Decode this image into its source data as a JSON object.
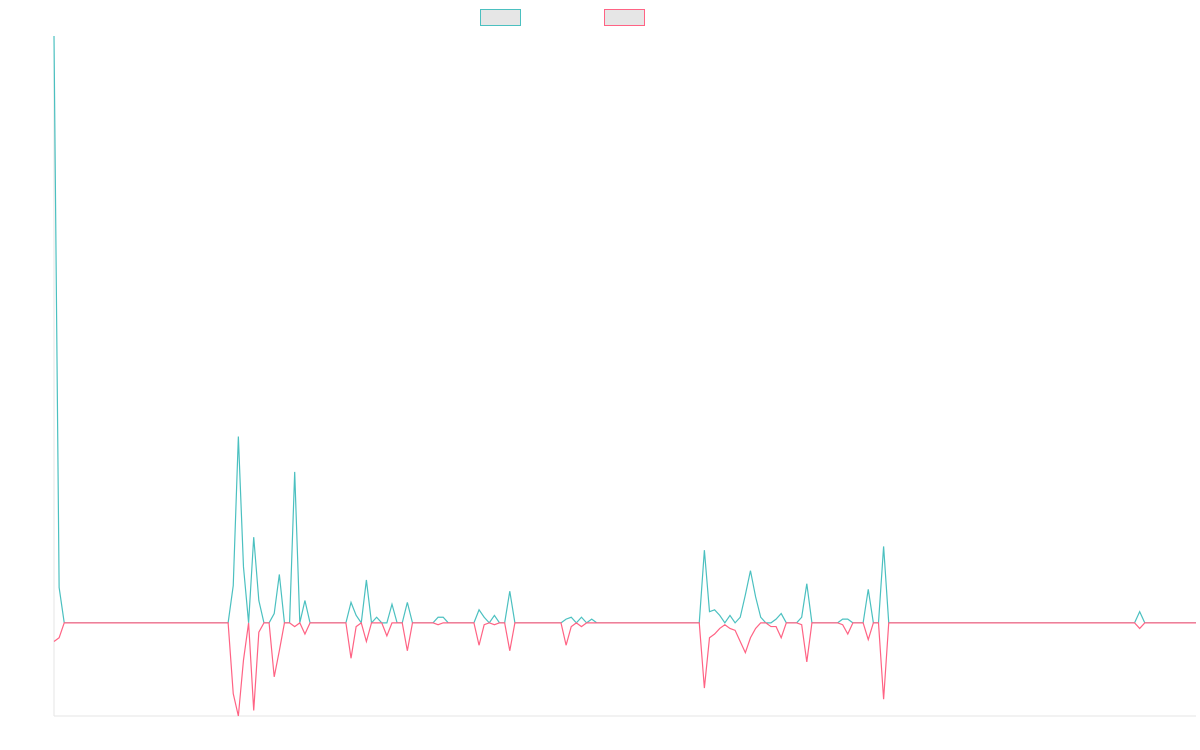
{
  "colors": {
    "series_a": "#4bc0c0",
    "series_b": "#ff6384",
    "legend_fill": "#e6e6e6",
    "axis": "#e5e5e5",
    "background": "#ffffff"
  },
  "legend": {
    "placement": "top-center",
    "items": [
      "",
      ""
    ]
  },
  "chart_data": {
    "type": "line",
    "title": "",
    "xlabel": "",
    "ylabel": "",
    "grid": false,
    "x_count": 224,
    "ylim": [
      -50,
      315
    ],
    "series": [
      {
        "name": "",
        "color": "#4bc0c0",
        "points": [
          [
            0,
            315
          ],
          [
            1,
            19
          ],
          [
            2,
            0
          ],
          [
            34,
            0
          ],
          [
            35,
            20
          ],
          [
            36,
            100
          ],
          [
            37,
            30
          ],
          [
            38,
            0
          ],
          [
            39,
            46
          ],
          [
            40,
            12
          ],
          [
            41,
            0
          ],
          [
            42,
            0
          ],
          [
            43,
            5
          ],
          [
            44,
            26
          ],
          [
            45,
            0
          ],
          [
            46,
            0
          ],
          [
            47,
            81
          ],
          [
            48,
            0
          ],
          [
            49,
            12
          ],
          [
            50,
            0
          ],
          [
            57,
            0
          ],
          [
            58,
            11
          ],
          [
            59,
            4
          ],
          [
            60,
            0
          ],
          [
            61,
            23
          ],
          [
            62,
            0
          ],
          [
            63,
            3
          ],
          [
            64,
            0
          ],
          [
            65,
            0
          ],
          [
            66,
            10
          ],
          [
            67,
            0
          ],
          [
            68,
            0
          ],
          [
            69,
            11
          ],
          [
            70,
            0
          ],
          [
            74,
            0
          ],
          [
            75,
            3
          ],
          [
            76,
            3
          ],
          [
            77,
            0
          ],
          [
            82,
            0
          ],
          [
            83,
            7
          ],
          [
            84,
            3
          ],
          [
            85,
            0
          ],
          [
            86,
            4
          ],
          [
            87,
            0
          ],
          [
            88,
            0
          ],
          [
            89,
            17
          ],
          [
            90,
            0
          ],
          [
            99,
            0
          ],
          [
            100,
            2
          ],
          [
            101,
            3
          ],
          [
            102,
            0
          ],
          [
            103,
            3
          ],
          [
            104,
            0
          ],
          [
            105,
            2
          ],
          [
            106,
            0
          ],
          [
            126,
            0
          ],
          [
            127,
            39
          ],
          [
            128,
            6
          ],
          [
            129,
            7
          ],
          [
            130,
            4
          ],
          [
            131,
            0
          ],
          [
            132,
            4
          ],
          [
            133,
            0
          ],
          [
            134,
            3
          ],
          [
            135,
            15
          ],
          [
            136,
            28
          ],
          [
            137,
            14
          ],
          [
            138,
            3
          ],
          [
            139,
            0
          ],
          [
            140,
            0
          ],
          [
            141,
            2
          ],
          [
            142,
            5
          ],
          [
            143,
            0
          ],
          [
            145,
            0
          ],
          [
            146,
            3
          ],
          [
            147,
            21
          ],
          [
            148,
            0
          ],
          [
            153,
            0
          ],
          [
            154,
            2
          ],
          [
            155,
            2
          ],
          [
            156,
            0
          ],
          [
            158,
            0
          ],
          [
            159,
            18
          ],
          [
            160,
            0
          ],
          [
            161,
            0
          ],
          [
            162,
            41
          ],
          [
            163,
            0
          ],
          [
            211,
            0
          ],
          [
            212,
            6
          ],
          [
            213,
            0
          ],
          [
            223,
            0
          ]
        ]
      },
      {
        "name": "",
        "color": "#ff6384",
        "points": [
          [
            0,
            -10
          ],
          [
            1,
            -8
          ],
          [
            2,
            0
          ],
          [
            34,
            0
          ],
          [
            35,
            -38
          ],
          [
            36,
            -50
          ],
          [
            37,
            -20
          ],
          [
            38,
            0
          ],
          [
            39,
            -47
          ],
          [
            40,
            -5
          ],
          [
            41,
            0
          ],
          [
            42,
            0
          ],
          [
            43,
            -29
          ],
          [
            44,
            -15
          ],
          [
            45,
            0
          ],
          [
            46,
            0
          ],
          [
            47,
            -2
          ],
          [
            48,
            0
          ],
          [
            49,
            -6
          ],
          [
            50,
            0
          ],
          [
            57,
            0
          ],
          [
            58,
            -19
          ],
          [
            59,
            -2
          ],
          [
            60,
            0
          ],
          [
            61,
            -10
          ],
          [
            62,
            0
          ],
          [
            63,
            0
          ],
          [
            64,
            0
          ],
          [
            65,
            -7
          ],
          [
            66,
            0
          ],
          [
            67,
            0
          ],
          [
            68,
            0
          ],
          [
            69,
            -15
          ],
          [
            70,
            0
          ],
          [
            74,
            0
          ],
          [
            75,
            -1
          ],
          [
            76,
            0
          ],
          [
            77,
            0
          ],
          [
            82,
            0
          ],
          [
            83,
            -12
          ],
          [
            84,
            -1
          ],
          [
            85,
            0
          ],
          [
            86,
            -1
          ],
          [
            87,
            0
          ],
          [
            88,
            0
          ],
          [
            89,
            -15
          ],
          [
            90,
            0
          ],
          [
            99,
            0
          ],
          [
            100,
            -12
          ],
          [
            101,
            -2
          ],
          [
            102,
            0
          ],
          [
            103,
            -2
          ],
          [
            104,
            0
          ],
          [
            105,
            0
          ],
          [
            106,
            0
          ],
          [
            126,
            0
          ],
          [
            127,
            -35
          ],
          [
            128,
            -8
          ],
          [
            129,
            -6
          ],
          [
            130,
            -3
          ],
          [
            131,
            -1
          ],
          [
            132,
            -3
          ],
          [
            133,
            -4
          ],
          [
            134,
            -10
          ],
          [
            135,
            -16
          ],
          [
            136,
            -8
          ],
          [
            137,
            -3
          ],
          [
            138,
            0
          ],
          [
            139,
            0
          ],
          [
            140,
            -2
          ],
          [
            141,
            -2
          ],
          [
            142,
            -8
          ],
          [
            143,
            0
          ],
          [
            145,
            0
          ],
          [
            146,
            -1
          ],
          [
            147,
            -21
          ],
          [
            148,
            0
          ],
          [
            153,
            0
          ],
          [
            154,
            -1
          ],
          [
            155,
            -6
          ],
          [
            156,
            0
          ],
          [
            158,
            0
          ],
          [
            159,
            -9
          ],
          [
            160,
            0
          ],
          [
            161,
            0
          ],
          [
            162,
            -41
          ],
          [
            163,
            0
          ],
          [
            211,
            0
          ],
          [
            212,
            -3
          ],
          [
            213,
            0
          ],
          [
            223,
            0
          ]
        ]
      }
    ]
  }
}
